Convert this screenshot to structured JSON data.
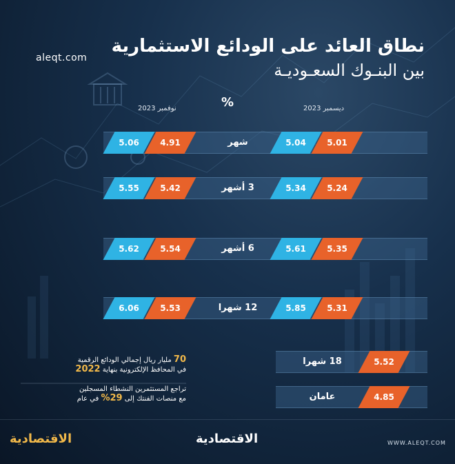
{
  "header": {
    "title_line1": "نطاق العائد على الودائع الاستثمارية",
    "title_line2": "بين البنـوك السعـوديـة",
    "site": "aleqt.com"
  },
  "chart_data": {
    "type": "table",
    "unit": "%",
    "columns": [
      "ديسمبر 2023",
      "نوفمبر 2023"
    ],
    "rows": [
      {
        "label": "شهر",
        "dec_2023": [
          5.01,
          5.04
        ],
        "nov_2023": [
          4.91,
          5.06
        ]
      },
      {
        "label": "3 أشهر",
        "dec_2023": [
          5.24,
          5.34
        ],
        "nov_2023": [
          5.42,
          5.55
        ]
      },
      {
        "label": "6 أشهر",
        "dec_2023": [
          5.35,
          5.61
        ],
        "nov_2023": [
          5.54,
          5.62
        ]
      },
      {
        "label": "12 شهرا",
        "dec_2023": [
          5.31,
          5.85
        ],
        "nov_2023": [
          5.53,
          6.06
        ]
      }
    ],
    "single_rows": [
      {
        "label": "18 شهرا",
        "value": 5.52
      },
      {
        "label": "عامان",
        "value": 4.85
      }
    ]
  },
  "notes": [
    {
      "prefix": "",
      "big": "70",
      "text": "مليار ريال إجمالي الودائع الرقمية",
      "line2": "في المحافظ الإلكترونية بنهاية",
      "big2": "2022"
    },
    {
      "line1": "تراجع المستثمرين النشطاء المسجلين",
      "line2": "مع منصات الفنتك إلى",
      "big": "29%",
      "suffix": "في عام"
    }
  ],
  "footer": {
    "brand_left": "الاقتصادية",
    "brand_center": "الاقتصادية",
    "site": "WWW.ALEQT.COM"
  },
  "colors": {
    "blue": "#2fb3e4",
    "orange": "#e8622a",
    "gold": "#f2b94a"
  }
}
